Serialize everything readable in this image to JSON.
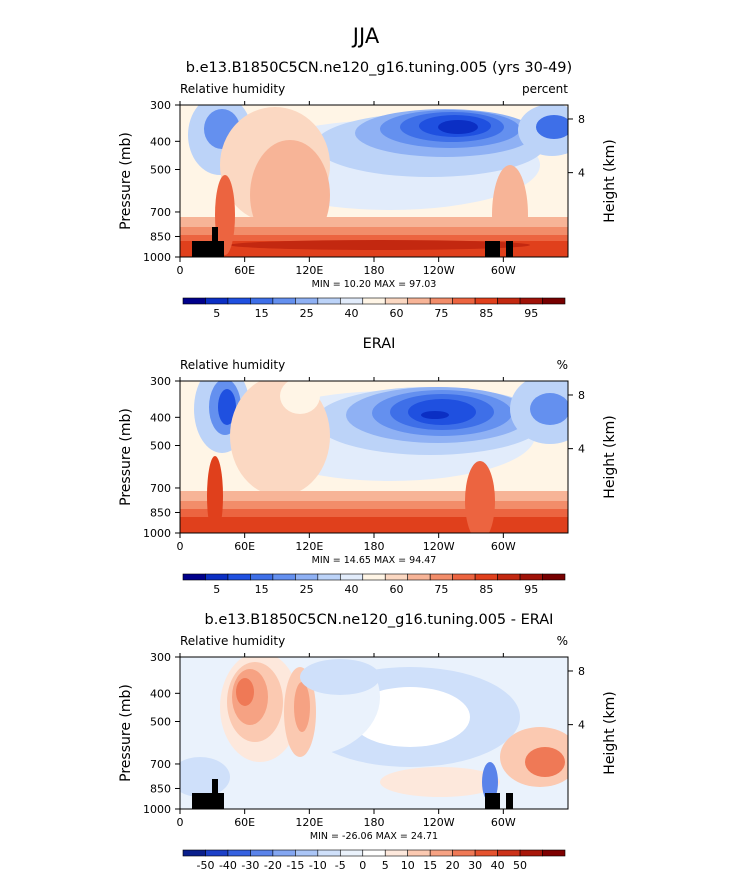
{
  "figure_title": "JJA",
  "chart_data": [
    {
      "type": "heatmap",
      "title": "b.e13.B1850C5CN.ne120_g16.tuning.005 (yrs 30-49)",
      "left_label": "Relative humidity",
      "right_label": "percent",
      "ylabel": "Pressure (mb)",
      "ylabel2": "Height (km)",
      "xticks": [
        "0",
        "60E",
        "120E",
        "180",
        "120W",
        "60W"
      ],
      "yticks": [
        "300",
        "400",
        "500",
        "700",
        "850",
        "1000"
      ],
      "yticks2": [
        "8",
        "4"
      ],
      "stats": "MIN =   10.20   MAX =   97.03",
      "colorbar": {
        "colors": [
          "#00008b",
          "#0b2fc4",
          "#1f50e0",
          "#3e6fe8",
          "#6490ef",
          "#8fb1f4",
          "#bcd3f8",
          "#e2ecfb",
          "#fff5e6",
          "#fbd8c2",
          "#f7b497",
          "#f28d6a",
          "#ec6440",
          "#e0401c",
          "#c32810",
          "#a01208",
          "#770000"
        ],
        "labels": [
          "5",
          "15",
          "25",
          "40",
          "60",
          "75",
          "85",
          "95"
        ]
      }
    },
    {
      "type": "heatmap",
      "title": "ERAI",
      "left_label": "Relative humidity",
      "right_label": "%",
      "ylabel": "Pressure (mb)",
      "ylabel2": "Height (km)",
      "xticks": [
        "0",
        "60E",
        "120E",
        "180",
        "120W",
        "60W"
      ],
      "yticks": [
        "300",
        "400",
        "500",
        "700",
        "850",
        "1000"
      ],
      "yticks2": [
        "8",
        "4"
      ],
      "stats": "MIN =   14.65   MAX =   94.47",
      "colorbar": {
        "colors": [
          "#00008b",
          "#0b2fc4",
          "#1f50e0",
          "#3e6fe8",
          "#6490ef",
          "#8fb1f4",
          "#bcd3f8",
          "#e2ecfb",
          "#fff5e6",
          "#fbd8c2",
          "#f7b497",
          "#f28d6a",
          "#ec6440",
          "#e0401c",
          "#c32810",
          "#a01208",
          "#770000"
        ],
        "labels": [
          "5",
          "15",
          "25",
          "40",
          "60",
          "75",
          "85",
          "95"
        ]
      }
    },
    {
      "type": "heatmap",
      "title": "b.e13.B1850C5CN.ne120_g16.tuning.005 - ERAI",
      "left_label": "Relative humidity",
      "right_label": "%",
      "ylabel": "Pressure (mb)",
      "ylabel2": "Height (km)",
      "xticks": [
        "0",
        "60E",
        "120E",
        "180",
        "120W",
        "60W"
      ],
      "yticks": [
        "300",
        "400",
        "500",
        "700",
        "850",
        "1000"
      ],
      "yticks2": [
        "8",
        "4"
      ],
      "stats": "MIN = -26.06   MAX =   24.71",
      "colorbar": {
        "colors": [
          "#0a1f8c",
          "#1c40c8",
          "#3561e0",
          "#5a83ea",
          "#83a6f1",
          "#aac5f6",
          "#cfe0fa",
          "#eaf2fc",
          "#ffffff",
          "#fde8dc",
          "#fbc9b1",
          "#f6a283",
          "#ef7956",
          "#e5532f",
          "#cc3219",
          "#a8170a",
          "#7e0000"
        ],
        "labels": [
          "-50",
          "-40",
          "-30",
          "-20",
          "-15",
          "-10",
          "-5",
          "0",
          "5",
          "10",
          "15",
          "20",
          "30",
          "40",
          "50"
        ]
      }
    }
  ]
}
